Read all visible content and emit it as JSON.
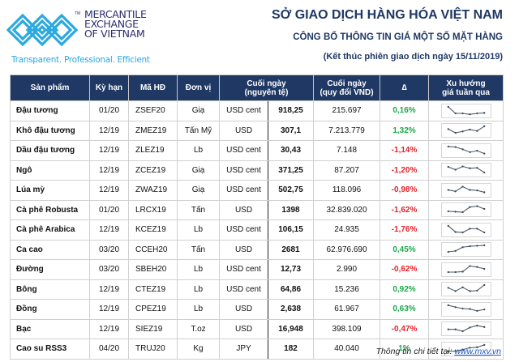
{
  "logo": {
    "lines": [
      "MERCANTILE",
      "EXCHANGE",
      "OF VIETNAM"
    ],
    "tm": "TM",
    "tagline": "Transparent. Professional. Efficient",
    "color": "#2aa9e0"
  },
  "header": {
    "title": "SỞ GIAO DỊCH HÀNG HÓA VIỆT NAM",
    "subtitle": "CÔNG BỐ THÔNG TIN GIÁ MỘT SỐ MẶT HÀNG",
    "session": "(Kết thúc phiên giao dịch ngày 15/11/2019)"
  },
  "table": {
    "columns": {
      "product": "Sản phẩm",
      "term": "Kỳ hạn",
      "code": "Mã HĐ",
      "unit": "Đơn vị",
      "close_native_1": "Cuối ngày",
      "close_native_2": "(nguyên tệ)",
      "close_vnd_1": "Cuối ngày",
      "close_vnd_2": "(quy đổi VND)",
      "delta": "∆",
      "trend_1": "Xu hướng",
      "trend_2": "giá tuần qua"
    },
    "colors": {
      "header": "#1f3864",
      "positive": "#1aa84a",
      "negative": "#e0232b"
    },
    "rows": [
      {
        "product": "Đậu tương",
        "term": "01/20",
        "code": "ZSEF20",
        "unit": "Giạ",
        "currency": "USD cent",
        "close": "918,25",
        "vnd": "215.697",
        "delta": "0,16%",
        "dir": "pos",
        "trend": [
          9,
          2,
          2,
          1,
          2,
          2.5
        ]
      },
      {
        "product": "Khô đậu tương",
        "term": "12/19",
        "code": "ZMEZ19",
        "unit": "Tấn Mỹ",
        "currency": "USD",
        "close": "307,1",
        "vnd": "7.213.779",
        "delta": "1,32%",
        "dir": "pos",
        "trend": [
          6,
          2,
          3.5,
          5.5,
          4,
          9
        ]
      },
      {
        "product": "Dầu đậu tương",
        "term": "12/19",
        "code": "ZLEZ19",
        "unit": "Lb",
        "currency": "USD cent",
        "close": "30,43",
        "vnd": "7.148",
        "delta": "-1,14%",
        "dir": "neg",
        "trend": [
          9,
          8.5,
          6,
          3,
          4.5,
          1.5
        ]
      },
      {
        "product": "Ngô",
        "term": "12/19",
        "code": "ZCEZ19",
        "unit": "Giạ",
        "currency": "USD cent",
        "close": "371,25",
        "vnd": "87.207",
        "delta": "-1,20%",
        "dir": "neg",
        "trend": [
          8,
          5,
          8.5,
          6.5,
          7,
          2
        ]
      },
      {
        "product": "Lúa mỳ",
        "term": "12/19",
        "code": "ZWAZ19",
        "unit": "Giạ",
        "currency": "USD cent",
        "close": "502,75",
        "vnd": "118.096",
        "delta": "-0,98%",
        "dir": "neg",
        "trend": [
          5,
          3.5,
          8.5,
          5,
          4.5,
          2.5
        ]
      },
      {
        "product": "Cà phê Robusta",
        "term": "01/20",
        "code": "LRCX19",
        "unit": "Tấn",
        "currency": "USD",
        "close": "1398",
        "vnd": "32.839.020",
        "delta": "-1,62%",
        "dir": "neg",
        "trend": [
          3,
          2.5,
          2,
          7.5,
          8.5,
          5.5
        ]
      },
      {
        "product": "Cà phê Arabica",
        "term": "12/19",
        "code": "KCEZ19",
        "unit": "Lb",
        "currency": "USD cent",
        "close": "106,15",
        "vnd": "24.935",
        "delta": "-1,76%",
        "dir": "neg",
        "trend": [
          9,
          2.5,
          2,
          6,
          6,
          2
        ]
      },
      {
        "product": "Ca cao",
        "term": "03/20",
        "code": "CCEH20",
        "unit": "Tấn",
        "currency": "USD",
        "close": "2681",
        "vnd": "62.976.690",
        "delta": "0,45%",
        "dir": "pos",
        "trend": [
          2,
          3,
          7,
          8,
          8.5,
          9
        ]
      },
      {
        "product": "Đường",
        "term": "03/20",
        "code": "SBEH20",
        "unit": "Lb",
        "currency": "USD cent",
        "close": "12,73",
        "vnd": "2.990",
        "delta": "-0,62%",
        "dir": "neg",
        "trend": [
          2,
          2,
          2.5,
          8.5,
          7.5,
          5.5
        ]
      },
      {
        "product": "Bông",
        "term": "12/19",
        "code": "CTEZ19",
        "unit": "Lb",
        "currency": "USD cent",
        "close": "64,86",
        "vnd": "15.236",
        "delta": "0,92%",
        "dir": "pos",
        "trend": [
          6,
          2.5,
          6.5,
          2.5,
          3,
          9
        ]
      },
      {
        "product": "Đồng",
        "term": "12/19",
        "code": "CPEZ19",
        "unit": "Lb",
        "currency": "USD",
        "close": "2,638",
        "vnd": "61.967",
        "delta": "0,63%",
        "dir": "pos",
        "trend": [
          9,
          7,
          5.5,
          5,
          3,
          4.5
        ]
      },
      {
        "product": "Bạc",
        "term": "12/19",
        "code": "SIEZ19",
        "unit": "T.oz",
        "currency": "USD",
        "close": "16,948",
        "vnd": "398.109",
        "delta": "-0,47%",
        "dir": "neg",
        "trend": [
          4,
          4,
          2,
          6,
          8,
          6.5
        ]
      },
      {
        "product": "Cao su RSS3",
        "term": "04/20",
        "code": "TRUJ20",
        "unit": "Kg",
        "currency": "JPY",
        "close": "182",
        "vnd": "40.040",
        "delta": "1%",
        "dir": "pos",
        "trend": [
          2,
          2.5,
          4,
          6,
          6.5,
          9
        ]
      }
    ]
  },
  "footer": {
    "label": "Thông tin chi tiết tại: ",
    "link": "www.mxv.vn"
  }
}
